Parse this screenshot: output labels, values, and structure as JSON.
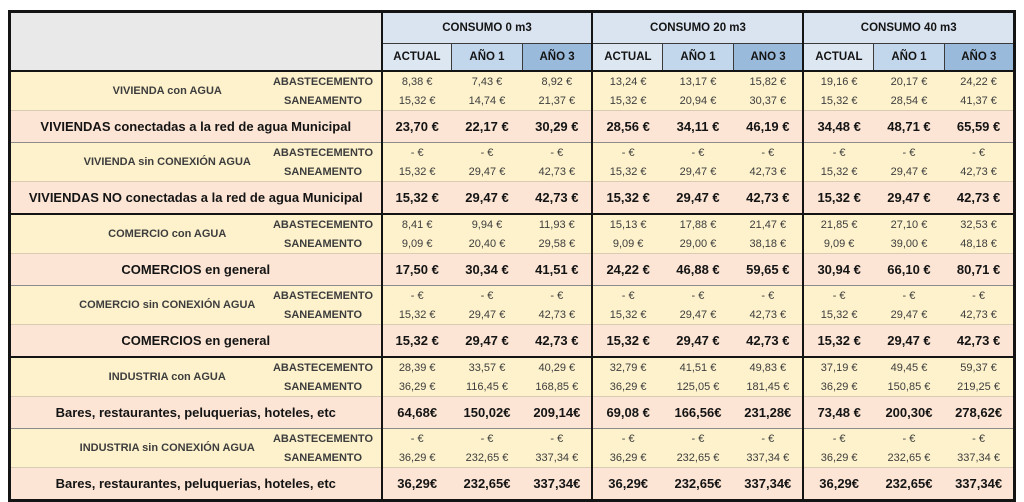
{
  "table": {
    "corner_label": "",
    "groups": [
      {
        "label": "CONSUMO 0 m3",
        "cols": [
          "ACTUAL",
          "AÑO 1",
          "AÑO 3"
        ]
      },
      {
        "label": "CONSUMO 20 m3",
        "cols": [
          "ACTUAL",
          "AÑO 1",
          "ANO 3"
        ]
      },
      {
        "label": "CONSUMO 40 m3",
        "cols": [
          "ACTUAL",
          "AÑO 1",
          "AÑO 3"
        ]
      }
    ],
    "sections": [
      {
        "name": "vivienda",
        "blocks": [
          {
            "entity": "VIVIENDA con AGUA",
            "services": [
              {
                "label": "ABASTECEMENTO",
                "values": [
                  "8,38 €",
                  "7,43 €",
                  "8,92 €",
                  "13,24 €",
                  "13,17 €",
                  "15,82 €",
                  "19,16 €",
                  "20,17 €",
                  "24,22 €"
                ]
              },
              {
                "label": "SANEAMENTO",
                "values": [
                  "15,32 €",
                  "14,74 €",
                  "21,37 €",
                  "15,32 €",
                  "20,94 €",
                  "30,37 €",
                  "15,32 €",
                  "28,54 €",
                  "41,37 €"
                ]
              }
            ],
            "total": {
              "label": "VIVIENDAS conectadas a la red de agua Municipal",
              "values": [
                "23,70 €",
                "22,17 €",
                "30,29 €",
                "28,56 €",
                "34,11 €",
                "46,19 €",
                "34,48 €",
                "48,71 €",
                "65,59 €"
              ]
            }
          },
          {
            "entity": "VIVIENDA sin CONEXIÓN AGUA",
            "services": [
              {
                "label": "ABASTECEMENTO",
                "values": [
                  "- €",
                  "- €",
                  "- €",
                  "- €",
                  "- €",
                  "- €",
                  "- €",
                  "- €",
                  "- €"
                ]
              },
              {
                "label": "SANEAMENTO",
                "values": [
                  "15,32 €",
                  "29,47 €",
                  "42,73 €",
                  "15,32 €",
                  "29,47 €",
                  "42,73 €",
                  "15,32 €",
                  "29,47 €",
                  "42,73 €"
                ]
              }
            ],
            "total": {
              "label": "VIVIENDAS NO conectadas a la red de agua Municipal",
              "values": [
                "15,32 €",
                "29,47 €",
                "42,73 €",
                "15,32 €",
                "29,47 €",
                "42,73 €",
                "15,32 €",
                "29,47 €",
                "42,73 €"
              ]
            }
          }
        ]
      },
      {
        "name": "comercio",
        "blocks": [
          {
            "entity": "COMERCIO con AGUA",
            "services": [
              {
                "label": "ABASTECEMENTO",
                "values": [
                  "8,41 €",
                  "9,94 €",
                  "11,93 €",
                  "15,13 €",
                  "17,88 €",
                  "21,47 €",
                  "21,85 €",
                  "27,10 €",
                  "32,53 €"
                ]
              },
              {
                "label": "SANEAMENTO",
                "values": [
                  "9,09 €",
                  "20,40 €",
                  "29,58 €",
                  "9,09 €",
                  "29,00 €",
                  "38,18 €",
                  "9,09 €",
                  "39,00 €",
                  "48,18 €"
                ]
              }
            ],
            "total": {
              "label": "COMERCIOS en general",
              "values": [
                "17,50 €",
                "30,34 €",
                "41,51 €",
                "24,22 €",
                "46,88 €",
                "59,65 €",
                "30,94 €",
                "66,10 €",
                "80,71 €"
              ]
            }
          },
          {
            "entity": "COMERCIO sin CONEXIÓN AGUA",
            "services": [
              {
                "label": "ABASTECEMENTO",
                "values": [
                  "- €",
                  "- €",
                  "- €",
                  "- €",
                  "- €",
                  "- €",
                  "- €",
                  "- €",
                  "- €"
                ]
              },
              {
                "label": "SANEAMENTO",
                "values": [
                  "15,32 €",
                  "29,47 €",
                  "42,73 €",
                  "15,32 €",
                  "29,47 €",
                  "42,73 €",
                  "15,32 €",
                  "29,47 €",
                  "42,73 €"
                ]
              }
            ],
            "total": {
              "label": "COMERCIOS en general",
              "values": [
                "15,32 €",
                "29,47 €",
                "42,73 €",
                "15,32 €",
                "29,47 €",
                "42,73 €",
                "15,32 €",
                "29,47 €",
                "42,73 €"
              ]
            }
          }
        ]
      },
      {
        "name": "industria",
        "blocks": [
          {
            "entity": "INDUSTRIA con AGUA",
            "services": [
              {
                "label": "ABASTECEMENTO",
                "values": [
                  "28,39 €",
                  "33,57 €",
                  "40,29 €",
                  "32,79 €",
                  "41,51 €",
                  "49,83 €",
                  "37,19 €",
                  "49,45 €",
                  "59,37 €"
                ]
              },
              {
                "label": "SANEAMENTO",
                "values": [
                  "36,29 €",
                  "116,45 €",
                  "168,85 €",
                  "36,29 €",
                  "125,05 €",
                  "181,45 €",
                  "36,29 €",
                  "150,85 €",
                  "219,25 €"
                ]
              }
            ],
            "total": {
              "label": "Bares, restaurantes, peluquerias, hoteles, etc",
              "values": [
                "64,68€",
                "150,02€",
                "209,14€",
                "69,08 €",
                "166,56€",
                "231,28€",
                "73,48 €",
                "200,30€",
                "278,62€"
              ]
            }
          },
          {
            "entity": "INDUSTRIA sin CONEXIÓN AGUA",
            "services": [
              {
                "label": "ABASTECEMENTO",
                "values": [
                  "- €",
                  "- €",
                  "- €",
                  "- €",
                  "- €",
                  "- €",
                  "- €",
                  "- €",
                  "- €"
                ]
              },
              {
                "label": "SANEAMENTO",
                "values": [
                  "36,29 €",
                  "232,65 €",
                  "337,34 €",
                  "36,29 €",
                  "232,65 €",
                  "337,34 €",
                  "36,29 €",
                  "232,65 €",
                  "337,34 €"
                ]
              }
            ],
            "total": {
              "label": "Bares, restaurantes, peluquerias, hoteles, etc",
              "values": [
                "36,29€",
                "232,65€",
                "337,34€",
                "36,29€",
                "232,65€",
                "337,34€",
                "36,29€",
                "232,65€",
                "337,34€"
              ]
            }
          }
        ]
      }
    ]
  },
  "colors": {
    "consumo_header_bg": "#dae4f0",
    "col_actual_bg": "#dde7f2",
    "col_ano1_bg": "#c3d7ec",
    "col_ano3_bg": "#9abadc",
    "corner_grey": "#e9e9e9",
    "service_row_bg": "#fdf2cc",
    "total_row_bg": "#fce5d5",
    "total_label_brown": "#a0522d",
    "border_dark": "#141414"
  }
}
